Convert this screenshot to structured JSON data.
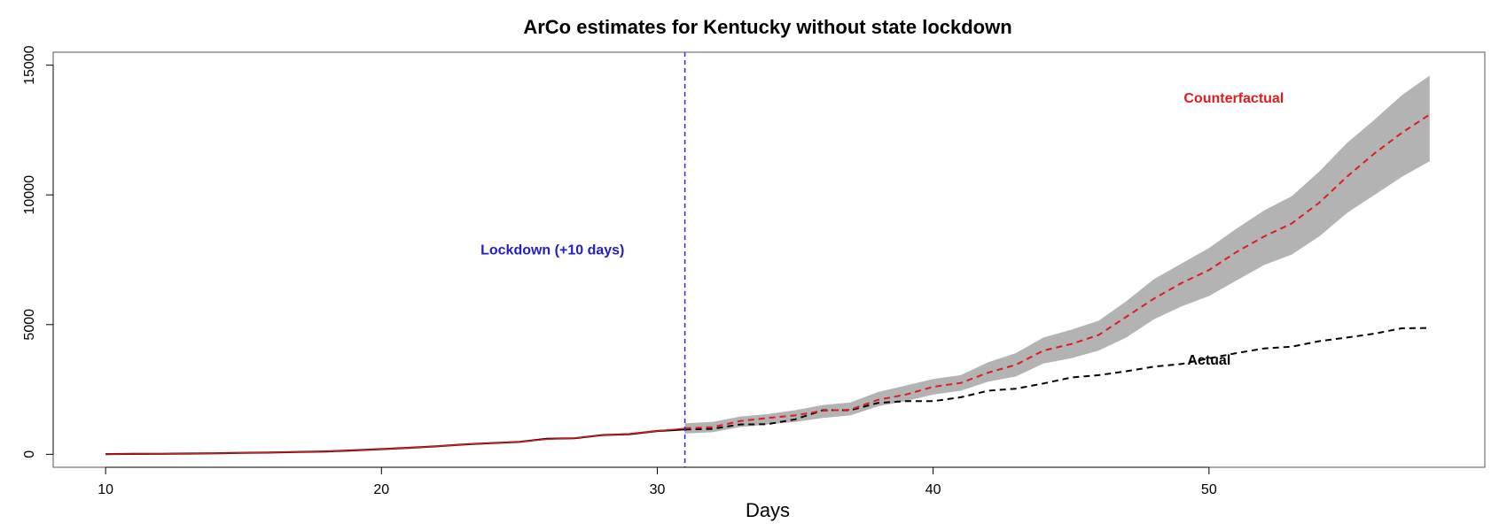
{
  "chart_data": {
    "type": "line",
    "title": "ArCo estimates for Kentucky without state lockdown",
    "xlabel": "Days",
    "ylabel": "",
    "xlim": [
      8.1,
      60.0
    ],
    "ylim": [
      -500,
      15500
    ],
    "xticks": [
      10,
      20,
      30,
      40,
      50
    ],
    "yticks": [
      0,
      5000,
      10000,
      15000
    ],
    "lockdown_day": 31,
    "colors": {
      "actual": "#000000",
      "counterfactual": "#e31a1c",
      "band": "#b3b3b3",
      "lockdown": "#2b2bd6",
      "lockdown_text": "#1f1fc4"
    },
    "annotations": [
      {
        "key": "lockdown",
        "text": "Lockdown (+10 days)",
        "x": 26.2,
        "y": 7850
      },
      {
        "key": "counterfactual",
        "text": "Counterfactual",
        "x": 50.9,
        "y": 13700
      },
      {
        "key": "actual",
        "text": "Actual",
        "x": 50.0,
        "y": 3600
      }
    ],
    "series": [
      {
        "name": "Actual",
        "x": [
          10,
          11,
          12,
          13,
          14,
          15,
          16,
          17,
          18,
          19,
          20,
          21,
          22,
          23,
          24,
          25,
          26,
          27,
          28,
          29,
          30,
          31,
          32,
          33,
          34,
          35,
          36,
          37,
          38,
          39,
          40,
          41,
          42,
          43,
          44,
          45,
          46,
          47,
          48,
          49,
          50,
          51,
          52,
          53,
          54,
          55,
          56,
          57,
          58
        ],
        "values": [
          10,
          15,
          20,
          30,
          40,
          55,
          70,
          90,
          110,
          150,
          200,
          250,
          310,
          380,
          430,
          480,
          600,
          620,
          740,
          780,
          900,
          960,
          980,
          1150,
          1160,
          1350,
          1700,
          1700,
          1980,
          2050,
          2050,
          2200,
          2450,
          2530,
          2730,
          2960,
          3050,
          3200,
          3380,
          3480,
          3700,
          3900,
          4080,
          4150,
          4360,
          4500,
          4650,
          4860,
          4870
        ]
      },
      {
        "name": "Counterfactual",
        "x": [
          10,
          11,
          12,
          13,
          14,
          15,
          16,
          17,
          18,
          19,
          20,
          21,
          22,
          23,
          24,
          25,
          26,
          27,
          28,
          29,
          30,
          31,
          32,
          33,
          34,
          35,
          36,
          37,
          38,
          39,
          40,
          41,
          42,
          43,
          44,
          45,
          46,
          47,
          48,
          49,
          50,
          51,
          52,
          53,
          54,
          55,
          56,
          57,
          58
        ],
        "values": [
          10,
          15,
          20,
          30,
          40,
          55,
          70,
          90,
          110,
          150,
          200,
          250,
          310,
          380,
          430,
          480,
          580,
          630,
          730,
          790,
          900,
          1000,
          1050,
          1280,
          1400,
          1500,
          1680,
          1720,
          2100,
          2300,
          2600,
          2750,
          3150,
          3450,
          4000,
          4250,
          4600,
          5300,
          6000,
          6600,
          7100,
          7800,
          8400,
          8900,
          9700,
          10700,
          11600,
          12400,
          13100
        ]
      },
      {
        "name": "Counterfactual band (lower)",
        "x": [
          31,
          32,
          33,
          34,
          35,
          36,
          37,
          38,
          39,
          40,
          41,
          42,
          43,
          44,
          45,
          46,
          47,
          48,
          49,
          50,
          51,
          52,
          53,
          54,
          55,
          56,
          57,
          58
        ],
        "values": [
          800,
          850,
          1050,
          1150,
          1250,
          1400,
          1500,
          1850,
          2050,
          2300,
          2450,
          2800,
          3000,
          3500,
          3700,
          4000,
          4500,
          5200,
          5700,
          6100,
          6700,
          7300,
          7700,
          8400,
          9300,
          10000,
          10700,
          11300
        ]
      },
      {
        "name": "Counterfactual band (upper)",
        "x": [
          31,
          32,
          33,
          34,
          35,
          36,
          37,
          38,
          39,
          40,
          41,
          42,
          43,
          44,
          45,
          46,
          47,
          48,
          49,
          50,
          51,
          52,
          53,
          54,
          55,
          56,
          57,
          58
        ],
        "values": [
          1200,
          1250,
          1450,
          1550,
          1700,
          1900,
          2000,
          2400,
          2650,
          2900,
          3050,
          3550,
          3900,
          4500,
          4800,
          5150,
          5900,
          6750,
          7350,
          7950,
          8700,
          9400,
          9950,
          10900,
          12000,
          12900,
          13850,
          14600
        ]
      }
    ]
  }
}
